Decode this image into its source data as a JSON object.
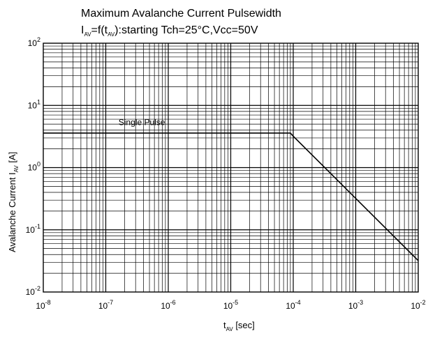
{
  "chart_data": {
    "type": "line",
    "title": "Maximum Avalanche Current Pulsewidth",
    "subtitle": {
      "main": "I",
      "sub1": "AV",
      "mid": "=f(t",
      "sub2": "AV",
      "tail": "):starting Tch=25°C,Vcc=50V"
    },
    "xlabel": {
      "main": "t",
      "sub": "AV",
      "tail": " [sec]"
    },
    "ylabel": {
      "main": "Avalanche Current I",
      "sub": "AV",
      "tail": "  [A]"
    },
    "x_scale": "log",
    "y_scale": "log",
    "xlim": [
      1e-08,
      0.01
    ],
    "ylim": [
      0.01,
      100
    ],
    "x_ticks": [
      {
        "value": 1e-08,
        "base": "10",
        "exp": "-8"
      },
      {
        "value": 1e-07,
        "base": "10",
        "exp": "-7"
      },
      {
        "value": 1e-06,
        "base": "10",
        "exp": "-6"
      },
      {
        "value": 1e-05,
        "base": "10",
        "exp": "-5"
      },
      {
        "value": 0.0001,
        "base": "10",
        "exp": "-4"
      },
      {
        "value": 0.001,
        "base": "10",
        "exp": "-3"
      },
      {
        "value": 0.01,
        "base": "10",
        "exp": "-2"
      }
    ],
    "y_ticks": [
      {
        "value": 100,
        "base": "10",
        "exp": "2"
      },
      {
        "value": 10,
        "base": "10",
        "exp": "1"
      },
      {
        "value": 1,
        "base": "10",
        "exp": "0"
      },
      {
        "value": 0.1,
        "base": "10",
        "exp": "-1"
      },
      {
        "value": 0.01,
        "base": "10",
        "exp": "-2"
      }
    ],
    "grid": true,
    "series": [
      {
        "x": [
          1e-08,
          9e-05,
          0.0001,
          0.001,
          0.01
        ],
        "y": [
          3.6,
          3.6,
          3.2,
          0.32,
          0.032
        ]
      }
    ],
    "annotations": [
      {
        "text": "Single Pulse",
        "x": 1.6e-07,
        "y": 4.8
      }
    ]
  }
}
